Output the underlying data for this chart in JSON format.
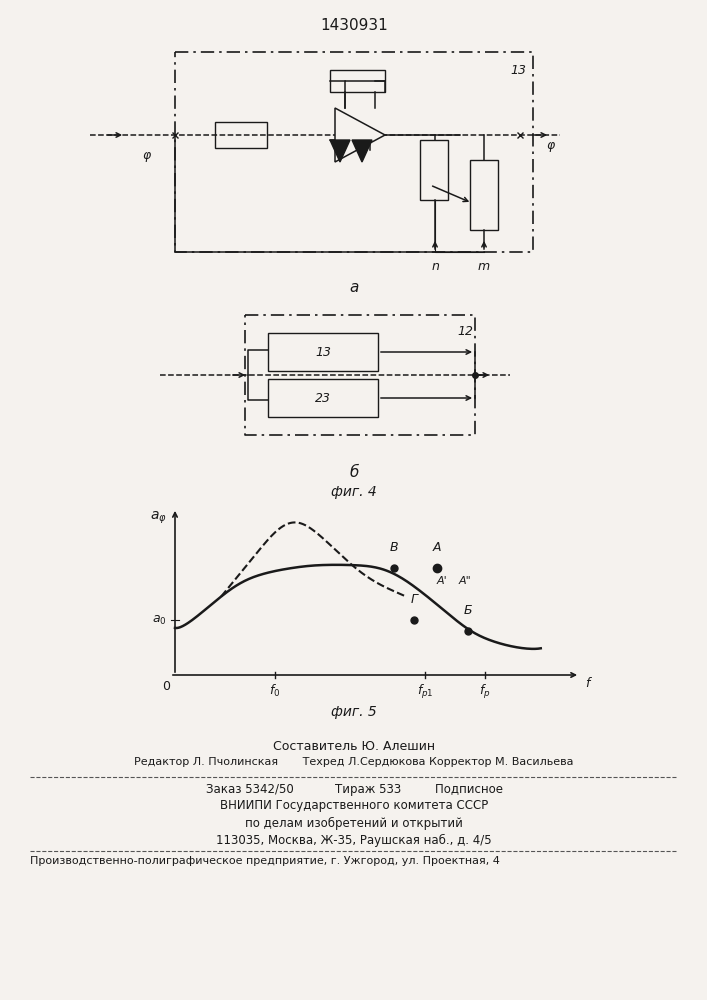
{
  "title": "1430931",
  "fig4_label": "фиг. 4",
  "fig5_label": "фиг. 5",
  "label_a": "a",
  "label_b": "б",
  "bg_color": "#f5f2ee",
  "text_color": "#1a1a1a",
  "footer_lines": [
    "Составитель Ю. Алешин",
    "Редактор Л. Пчолинская       Техред Л.Сердюкова Корректор М. Васильева",
    "Заказ 5342/50           Тираж 533         Подписное",
    "ВНИИПИ Государственного комитета СССР",
    "по делам изобретений и открытий",
    "113035, Москва, Ж-35, Раушская наб., д. 4/5",
    "Производственно-полиграфическое предприятие, г. Ужгород, ул. Проектная, 4"
  ]
}
